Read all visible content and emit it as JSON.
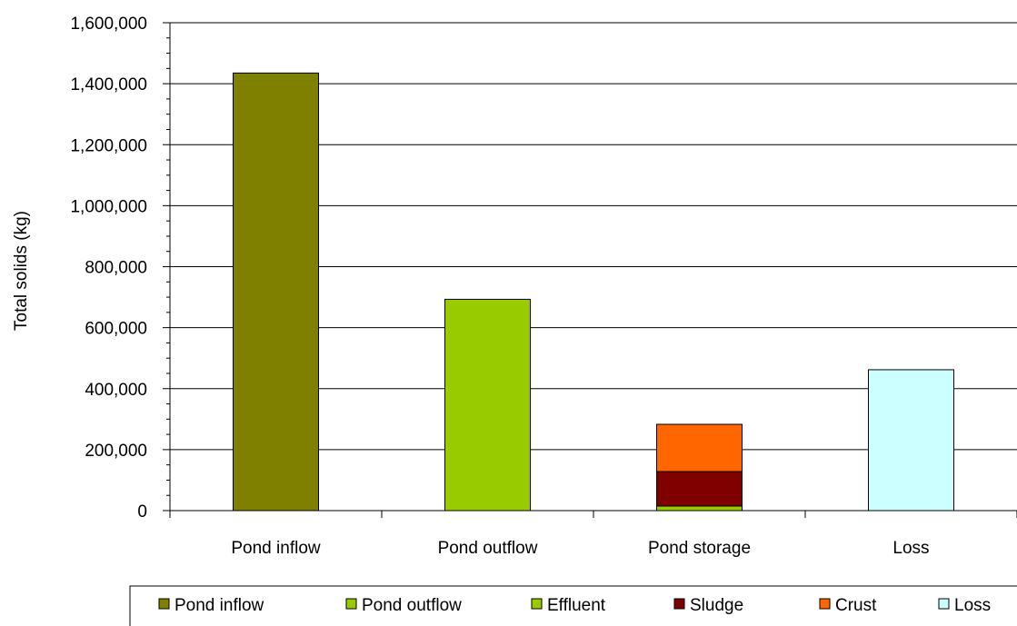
{
  "chart_data": {
    "type": "bar",
    "stacked": true,
    "title": "",
    "xlabel": "",
    "ylabel": "Total solids (kg)",
    "ylim": [
      0,
      1600000
    ],
    "y_major_step": 200000,
    "y_minor_step": 50000,
    "y_tick_labels": [
      "0",
      "200,000",
      "400,000",
      "600,000",
      "800,000",
      "1,000,000",
      "1,200,000",
      "1,400,000",
      "1,600,000"
    ],
    "grid": true,
    "legend_position": "bottom",
    "categories": [
      "Pond inflow",
      "Pond outflow",
      "Pond storage",
      "Loss"
    ],
    "series": [
      {
        "name": "Pond inflow",
        "color": "#808000",
        "values": [
          1435000,
          0,
          0,
          0
        ]
      },
      {
        "name": "Pond outflow",
        "color": "#99cc00",
        "values": [
          0,
          693000,
          0,
          0
        ]
      },
      {
        "name": "Effluent",
        "color": "#99cc00",
        "values": [
          0,
          0,
          15000,
          0
        ]
      },
      {
        "name": "Sludge",
        "color": "#800000",
        "values": [
          0,
          0,
          113000,
          0
        ]
      },
      {
        "name": "Crust",
        "color": "#ff6600",
        "values": [
          0,
          0,
          155000,
          0
        ]
      },
      {
        "name": "Loss",
        "color": "#ccffff",
        "values": [
          0,
          0,
          0,
          462000
        ]
      }
    ]
  }
}
